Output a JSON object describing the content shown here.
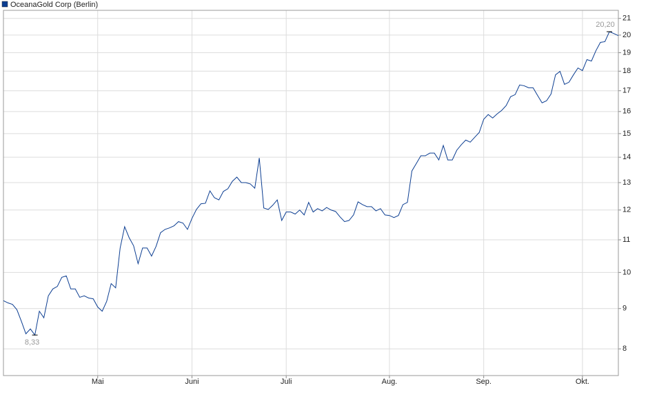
{
  "chart_data": {
    "type": "line",
    "log_scale": true,
    "grid": true,
    "legend": "top-left",
    "categories": [
      null,
      null,
      null,
      null,
      null,
      null,
      null,
      null,
      null,
      null,
      null,
      null,
      null,
      null,
      null,
      null,
      null,
      null,
      null,
      null,
      null,
      "Mai",
      null,
      null,
      null,
      null,
      null,
      null,
      null,
      null,
      null,
      null,
      null,
      null,
      null,
      null,
      null,
      null,
      null,
      null,
      null,
      null,
      "Juni",
      null,
      null,
      null,
      null,
      null,
      null,
      null,
      null,
      null,
      null,
      null,
      null,
      null,
      null,
      null,
      null,
      null,
      null,
      null,
      null,
      "Juli",
      null,
      null,
      null,
      null,
      null,
      null,
      null,
      null,
      null,
      null,
      null,
      null,
      null,
      null,
      null,
      null,
      null,
      null,
      null,
      null,
      null,
      null,
      "Aug.",
      null,
      null,
      null,
      null,
      null,
      null,
      null,
      null,
      null,
      null,
      null,
      null,
      null,
      null,
      null,
      null,
      null,
      null,
      null,
      null,
      "Sep.",
      null,
      null,
      null,
      null,
      null,
      null,
      null,
      null,
      null,
      null,
      null,
      null,
      null,
      null,
      null,
      null,
      null,
      null,
      null,
      null,
      null,
      "Okt.",
      null,
      null,
      null,
      null,
      null,
      null,
      null,
      null
    ],
    "series": [
      {
        "name": "OceanaGold Corp (Berlin)",
        "color": "#0b3d91",
        "values": [
          9.21,
          9.15,
          9.11,
          8.97,
          8.67,
          8.36,
          8.48,
          8.33,
          8.93,
          8.76,
          9.34,
          9.53,
          9.6,
          9.86,
          9.9,
          9.53,
          9.53,
          9.3,
          9.34,
          9.28,
          9.26,
          9.04,
          8.93,
          9.19,
          9.68,
          9.56,
          10.74,
          11.43,
          11.07,
          10.81,
          10.26,
          10.74,
          10.74,
          10.49,
          10.79,
          11.23,
          11.34,
          11.39,
          11.46,
          11.6,
          11.55,
          11.34,
          11.71,
          12.02,
          12.22,
          12.24,
          12.69,
          12.44,
          12.36,
          12.67,
          12.77,
          13.05,
          13.21,
          13.0,
          13.0,
          12.95,
          12.79,
          13.97,
          12.07,
          12.02,
          12.17,
          12.36,
          11.64,
          11.93,
          11.93,
          11.86,
          12.0,
          11.83,
          12.27,
          11.93,
          12.05,
          11.97,
          12.09,
          12.0,
          11.95,
          11.76,
          11.6,
          11.64,
          11.83,
          12.29,
          12.19,
          12.12,
          12.12,
          11.97,
          12.05,
          11.83,
          11.81,
          11.74,
          11.81,
          12.19,
          12.27,
          13.45,
          13.75,
          14.06,
          14.06,
          14.17,
          14.17,
          13.89,
          14.49,
          13.89,
          13.89,
          14.29,
          14.52,
          14.72,
          14.63,
          14.84,
          15.05,
          15.64,
          15.86,
          15.7,
          15.89,
          16.05,
          16.28,
          16.71,
          16.81,
          17.29,
          17.25,
          17.15,
          17.15,
          16.77,
          16.41,
          16.51,
          16.84,
          17.81,
          17.99,
          17.32,
          17.43,
          17.81,
          18.17,
          18.03,
          18.62,
          18.54,
          19.11,
          19.58,
          19.62,
          20.2,
          20.09,
          19.97
        ],
        "value_labels": [
          null,
          null,
          null,
          null,
          null,
          null,
          null,
          "8,33",
          null,
          null,
          null,
          null,
          null,
          null,
          null,
          null,
          null,
          null,
          null,
          null,
          null,
          null,
          null,
          null,
          null,
          null,
          null,
          null,
          null,
          null,
          null,
          null,
          null,
          null,
          null,
          null,
          null,
          null,
          null,
          null,
          null,
          null,
          null,
          null,
          null,
          null,
          null,
          null,
          null,
          null,
          null,
          null,
          null,
          null,
          null,
          null,
          null,
          null,
          null,
          null,
          null,
          null,
          null,
          null,
          null,
          null,
          null,
          null,
          null,
          null,
          null,
          null,
          null,
          null,
          null,
          null,
          null,
          null,
          null,
          null,
          null,
          null,
          null,
          null,
          null,
          null,
          null,
          null,
          null,
          null,
          null,
          null,
          null,
          null,
          null,
          null,
          null,
          null,
          null,
          null,
          null,
          null,
          null,
          null,
          null,
          null,
          null,
          null,
          null,
          null,
          null,
          null,
          null,
          null,
          null,
          null,
          null,
          null,
          null,
          null,
          null,
          null,
          null,
          null,
          null,
          null,
          null,
          null,
          null,
          null,
          null,
          null,
          null,
          null,
          null,
          "20,20",
          null,
          null
        ]
      }
    ],
    "ylim": [
      7.4,
      21.5
    ],
    "yticks": [
      8,
      9,
      10,
      11,
      12,
      13,
      14,
      15,
      16,
      17,
      18,
      19,
      20,
      21
    ]
  }
}
